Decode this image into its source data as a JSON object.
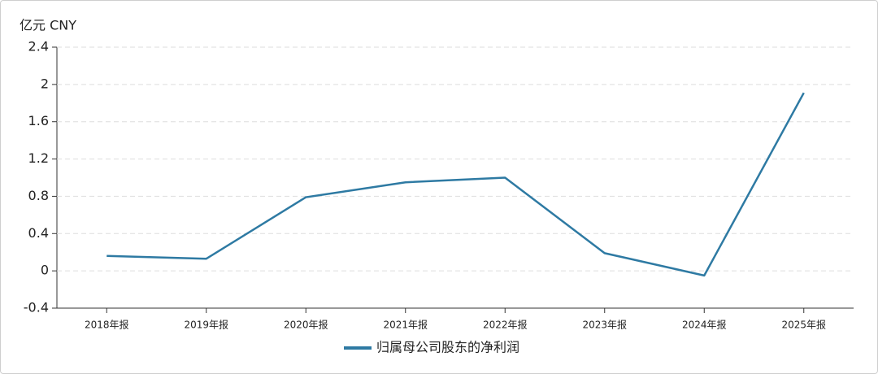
{
  "chart_data": {
    "type": "line",
    "y_label": "亿元  CNY",
    "categories": [
      "2018年报",
      "2019年报",
      "2020年报",
      "2021年报",
      "2022年报",
      "2023年报",
      "2024年报",
      "2025年报"
    ],
    "series": [
      {
        "name": "归属母公司股东的净利润",
        "color": "#2e7aa3",
        "values": [
          0.16,
          0.13,
          0.79,
          0.95,
          1.0,
          0.19,
          -0.05,
          1.91
        ]
      }
    ],
    "ylim": [
      -0.4,
      2.4
    ],
    "yticks": [
      -0.4,
      0,
      0.4,
      0.8,
      1.2,
      1.6,
      2,
      2.4
    ],
    "grid": true,
    "legend": "bottom"
  }
}
